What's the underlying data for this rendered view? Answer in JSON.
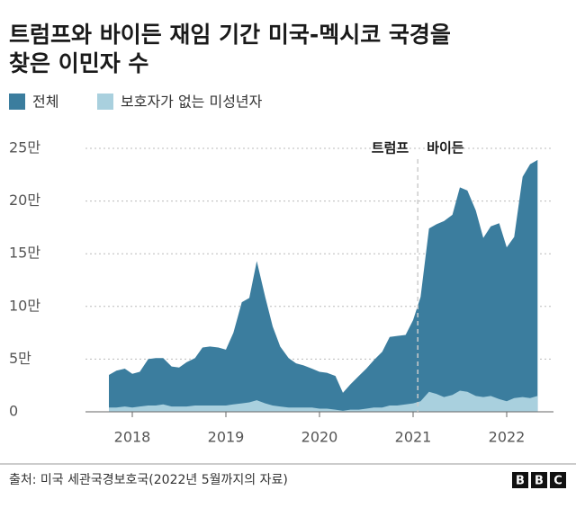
{
  "chart_data": {
    "type": "area",
    "title": [
      "트럼프와 바이든 재임 기간 미국-멕시코 국경을",
      "찾은 이민자 수"
    ],
    "x": [
      2017.75,
      2017.83,
      2017.92,
      2018.0,
      2018.08,
      2018.17,
      2018.25,
      2018.33,
      2018.42,
      2018.5,
      2018.58,
      2018.67,
      2018.75,
      2018.83,
      2018.92,
      2019.0,
      2019.08,
      2019.17,
      2019.25,
      2019.33,
      2019.42,
      2019.5,
      2019.58,
      2019.67,
      2019.75,
      2019.83,
      2019.92,
      2020.0,
      2020.08,
      2020.17,
      2020.25,
      2020.33,
      2020.42,
      2020.5,
      2020.58,
      2020.67,
      2020.75,
      2020.83,
      2020.92,
      2021.0,
      2021.08,
      2021.17,
      2021.25,
      2021.33,
      2021.42,
      2021.5,
      2021.58,
      2021.67,
      2021.75,
      2021.83,
      2021.92,
      2022.0,
      2022.08,
      2022.17,
      2022.25,
      2022.33
    ],
    "series": [
      {
        "name": "전체",
        "color": "#3b7d9e",
        "values": [
          3.5,
          3.9,
          4.1,
          3.6,
          3.8,
          5.0,
          5.1,
          5.1,
          4.3,
          4.2,
          4.7,
          5.1,
          6.1,
          6.2,
          6.1,
          5.9,
          7.5,
          10.4,
          10.8,
          14.3,
          10.9,
          8.1,
          6.2,
          5.1,
          4.6,
          4.4,
          4.1,
          3.8,
          3.7,
          3.4,
          1.8,
          2.6,
          3.4,
          4.1,
          4.9,
          5.7,
          7.1,
          7.2,
          7.3,
          8.7,
          10.9,
          17.4,
          17.8,
          18.1,
          18.7,
          21.3,
          21.0,
          19.1,
          16.5,
          17.6,
          17.9,
          15.6,
          16.6,
          22.3,
          23.5,
          23.9
        ]
      },
      {
        "name": "보호자가 없는 미성년자",
        "color": "#a9d0de",
        "values": [
          0.4,
          0.4,
          0.5,
          0.4,
          0.5,
          0.6,
          0.6,
          0.7,
          0.5,
          0.5,
          0.5,
          0.6,
          0.6,
          0.6,
          0.6,
          0.6,
          0.7,
          0.8,
          0.9,
          1.1,
          0.8,
          0.6,
          0.5,
          0.4,
          0.4,
          0.4,
          0.4,
          0.3,
          0.3,
          0.2,
          0.1,
          0.2,
          0.2,
          0.3,
          0.4,
          0.4,
          0.6,
          0.6,
          0.7,
          0.8,
          1.0,
          1.9,
          1.7,
          1.4,
          1.6,
          2.0,
          1.9,
          1.5,
          1.4,
          1.5,
          1.2,
          1.0,
          1.3,
          1.4,
          1.3,
          1.5
        ]
      }
    ],
    "xlim": [
      2017.5,
      2022.5
    ],
    "xticks": [
      2018,
      2019,
      2020,
      2021,
      2022
    ],
    "ylim": [
      0,
      25
    ],
    "yticks": [
      0,
      {
        "value": 5,
        "label": "5만"
      },
      {
        "value": 10,
        "label": "10만"
      },
      {
        "value": 15,
        "label": "15만"
      },
      {
        "value": 20,
        "label": "20만"
      },
      {
        "value": 25,
        "label": "25만"
      }
    ],
    "grid": true,
    "divider": {
      "x": 2021.05,
      "left_label": "트럼프",
      "right_label": "바이든"
    },
    "source": "출처: 미국 세관국경보호국(2022년 5월까지의 자료)",
    "logo": [
      "B",
      "B",
      "C"
    ]
  }
}
